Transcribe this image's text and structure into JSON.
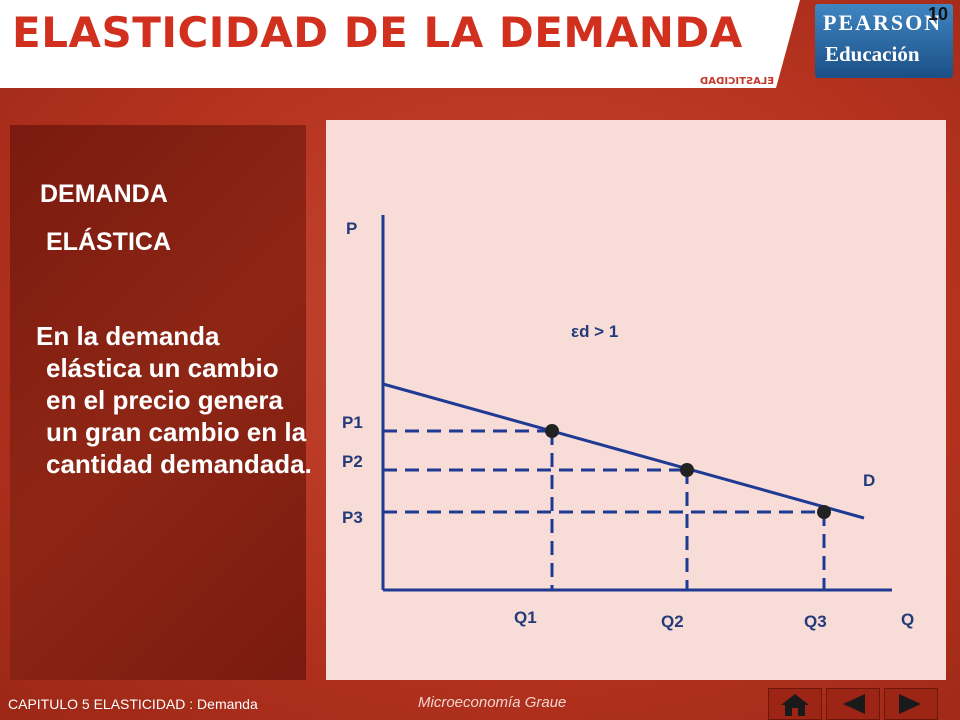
{
  "header": {
    "title": "ELASTICIDAD DE LA DEMANDA",
    "mirror_tag": "ELASTICIDAD",
    "logo_top": "PEARSON",
    "logo_bottom": "Educación",
    "slide_number": "10"
  },
  "left_panel": {
    "heading_line1": "DEMANDA",
    "heading_line2": "ELÁSTICA",
    "description": "En la demanda elástica un cambio en el precio genera un gran cambio en la cantidad demandada."
  },
  "chart_data": {
    "type": "line",
    "ylabel": "P",
    "xlabel": "Q",
    "annotation": "εd > 1",
    "curve_label": "D",
    "price_labels": [
      "P1",
      "P2",
      "P3"
    ],
    "quantity_labels": [
      "Q1",
      "Q2",
      "Q3"
    ],
    "points": [
      {
        "price": "P1",
        "quantity": "Q1"
      },
      {
        "price": "P2",
        "quantity": "Q2"
      },
      {
        "price": "P3",
        "quantity": "Q3"
      }
    ],
    "colors": {
      "curve": "#1f3a93",
      "axis": "#1f3a93",
      "guides": "#1f3a93",
      "points": "#222222"
    }
  },
  "footer": {
    "caption": "CAPITULO 5  ELASTICIDAD : Demanda",
    "logo_text": "Microeconomía Graue"
  },
  "nav": {
    "home_icon": "home-icon",
    "back_icon": "back-arrow-icon",
    "next_icon": "next-arrow-icon"
  }
}
